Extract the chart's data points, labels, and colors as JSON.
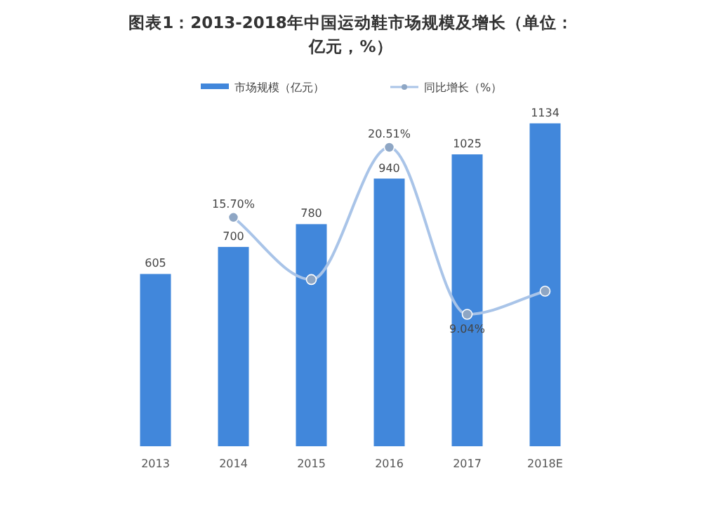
{
  "chart_data": {
    "type": "bar",
    "title": "图表1：2013-2018年中国运动鞋市场规模及增长（单位：亿元，%）",
    "categories": [
      "2013",
      "2014",
      "2015",
      "2016",
      "2017",
      "2018E"
    ],
    "series": [
      {
        "name": "市场规模（亿元）",
        "color": "#4187db",
        "values": [
          605,
          700,
          780,
          940,
          1025,
          1134
        ],
        "value_labels": [
          "605",
          "700",
          "780",
          "940",
          "1025",
          "1134"
        ]
      },
      {
        "name": "同比增长（%）",
        "type": "line",
        "axis": "y2",
        "color": "#a9c4e8",
        "marker": "circle",
        "values": [
          null,
          15.7,
          11.43,
          20.51,
          9.04,
          10.63
        ],
        "value_labels": [
          null,
          "15.70%",
          null,
          "20.51%",
          "9.04%",
          null
        ]
      }
    ],
    "legend": "top",
    "tick_labels": "x"
  }
}
